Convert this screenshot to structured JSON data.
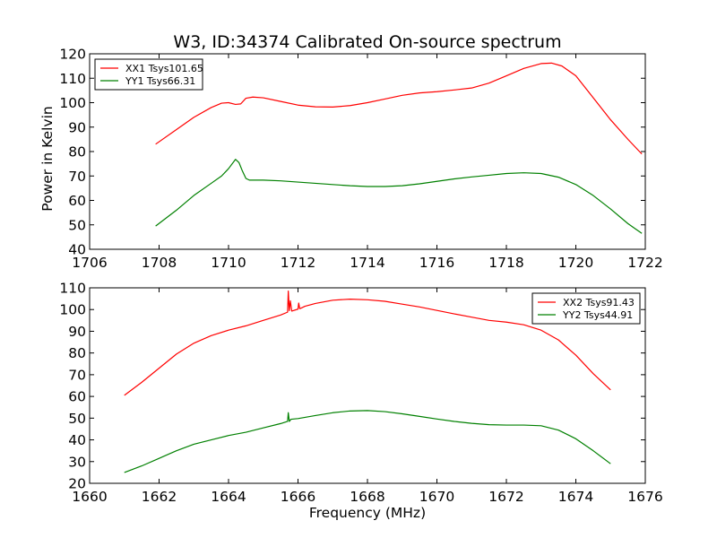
{
  "chart_data": [
    {
      "type": "line",
      "title": "W3, ID:34374 Calibrated On-source spectrum",
      "xlabel": "",
      "ylabel": "Power in Kelvin",
      "xlim": [
        1706,
        1722
      ],
      "ylim": [
        40,
        120
      ],
      "xticks": [
        1706,
        1708,
        1710,
        1712,
        1714,
        1716,
        1718,
        1720,
        1722
      ],
      "yticks": [
        40,
        50,
        60,
        70,
        80,
        90,
        100,
        110,
        120
      ],
      "grid": false,
      "legend": "top-left",
      "series": [
        {
          "name": "XX1 Tsys101.65",
          "color": "#ff0000",
          "x": [
            1707.9,
            1708.5,
            1709.0,
            1709.5,
            1709.8,
            1710.0,
            1710.2,
            1710.35,
            1710.5,
            1710.7,
            1711.0,
            1711.5,
            1712.0,
            1712.5,
            1713.0,
            1713.5,
            1714.0,
            1714.5,
            1715.0,
            1715.5,
            1716.0,
            1716.5,
            1717.0,
            1717.5,
            1718.0,
            1718.5,
            1719.0,
            1719.3,
            1719.6,
            1720.0,
            1720.5,
            1721.0,
            1721.5,
            1721.9
          ],
          "y": [
            83,
            89,
            94,
            98,
            99.8,
            100,
            99.3,
            99.5,
            101.8,
            102.3,
            102,
            100.5,
            99,
            98.3,
            98.2,
            98.8,
            100,
            101.5,
            103,
            104,
            104.5,
            105.2,
            106,
            108,
            111,
            114,
            116,
            116.2,
            115,
            111,
            102,
            93,
            85,
            79
          ]
        },
        {
          "name": "YY1 Tsys66.31",
          "color": "#008000",
          "x": [
            1707.9,
            1708.5,
            1709.0,
            1709.5,
            1709.8,
            1710.0,
            1710.2,
            1710.3,
            1710.4,
            1710.5,
            1710.6,
            1711.0,
            1711.5,
            1712.0,
            1712.5,
            1713.0,
            1713.5,
            1714.0,
            1714.5,
            1715.0,
            1715.5,
            1716.0,
            1716.5,
            1717.0,
            1717.5,
            1718.0,
            1718.5,
            1719.0,
            1719.5,
            1720.0,
            1720.5,
            1721.0,
            1721.5,
            1721.9
          ],
          "y": [
            49.5,
            56,
            62,
            67,
            70,
            73,
            76.8,
            75.5,
            72,
            69,
            68.3,
            68.3,
            68,
            67.5,
            67,
            66.5,
            66,
            65.7,
            65.7,
            66,
            66.8,
            67.8,
            68.8,
            69.6,
            70.3,
            71,
            71.3,
            71,
            69.5,
            66.5,
            62,
            56.5,
            50.5,
            46.5
          ]
        }
      ]
    },
    {
      "type": "line",
      "title": "",
      "xlabel": "Frequency (MHz)",
      "ylabel": "",
      "xlim": [
        1660,
        1676
      ],
      "ylim": [
        20,
        110
      ],
      "xticks": [
        1660,
        1662,
        1664,
        1666,
        1668,
        1670,
        1672,
        1674,
        1676
      ],
      "yticks": [
        20,
        30,
        40,
        50,
        60,
        70,
        80,
        90,
        100,
        110
      ],
      "grid": false,
      "legend": "top-right",
      "series": [
        {
          "name": "XX2 Tsys91.43",
          "color": "#ff0000",
          "x": [
            1661.0,
            1661.5,
            1662.0,
            1662.5,
            1663.0,
            1663.5,
            1664.0,
            1664.5,
            1665.0,
            1665.5,
            1665.7,
            1665.72,
            1665.75,
            1665.78,
            1665.82,
            1666.0,
            1666.02,
            1666.05,
            1666.08,
            1666.2,
            1666.5,
            1667.0,
            1667.5,
            1668.0,
            1668.5,
            1669.0,
            1669.5,
            1670.0,
            1670.5,
            1671.0,
            1671.5,
            1672.0,
            1672.5,
            1673.0,
            1673.5,
            1674.0,
            1674.5,
            1675.0
          ],
          "y": [
            60.5,
            66.5,
            73,
            79.5,
            84.5,
            88,
            90.5,
            92.5,
            95,
            97.5,
            98.8,
            108.5,
            99.5,
            104,
            99.3,
            100.2,
            103,
            100.4,
            100.6,
            101.5,
            102.8,
            104.3,
            104.8,
            104.5,
            103.8,
            102.5,
            101.2,
            99.6,
            98,
            96.5,
            95,
            94.2,
            93,
            90.5,
            86,
            79,
            70.5,
            63
          ]
        },
        {
          "name": "YY2 Tsys44.91",
          "color": "#008000",
          "x": [
            1661.0,
            1661.5,
            1662.0,
            1662.5,
            1663.0,
            1663.5,
            1664.0,
            1664.5,
            1665.0,
            1665.5,
            1665.7,
            1665.72,
            1665.75,
            1665.8,
            1666.0,
            1666.5,
            1667.0,
            1667.5,
            1668.0,
            1668.5,
            1669.0,
            1669.5,
            1670.0,
            1670.5,
            1671.0,
            1671.5,
            1672.0,
            1672.5,
            1673.0,
            1673.5,
            1674.0,
            1674.5,
            1675.0
          ],
          "y": [
            25,
            28,
            31.5,
            35,
            38,
            40,
            42,
            43.5,
            45.5,
            47.5,
            48.5,
            52.5,
            48.5,
            49.5,
            49.8,
            51.2,
            52.5,
            53.3,
            53.5,
            53,
            52,
            50.8,
            49.6,
            48.5,
            47.6,
            47,
            46.8,
            46.8,
            46.5,
            44.5,
            40.5,
            35,
            29
          ]
        }
      ]
    }
  ]
}
